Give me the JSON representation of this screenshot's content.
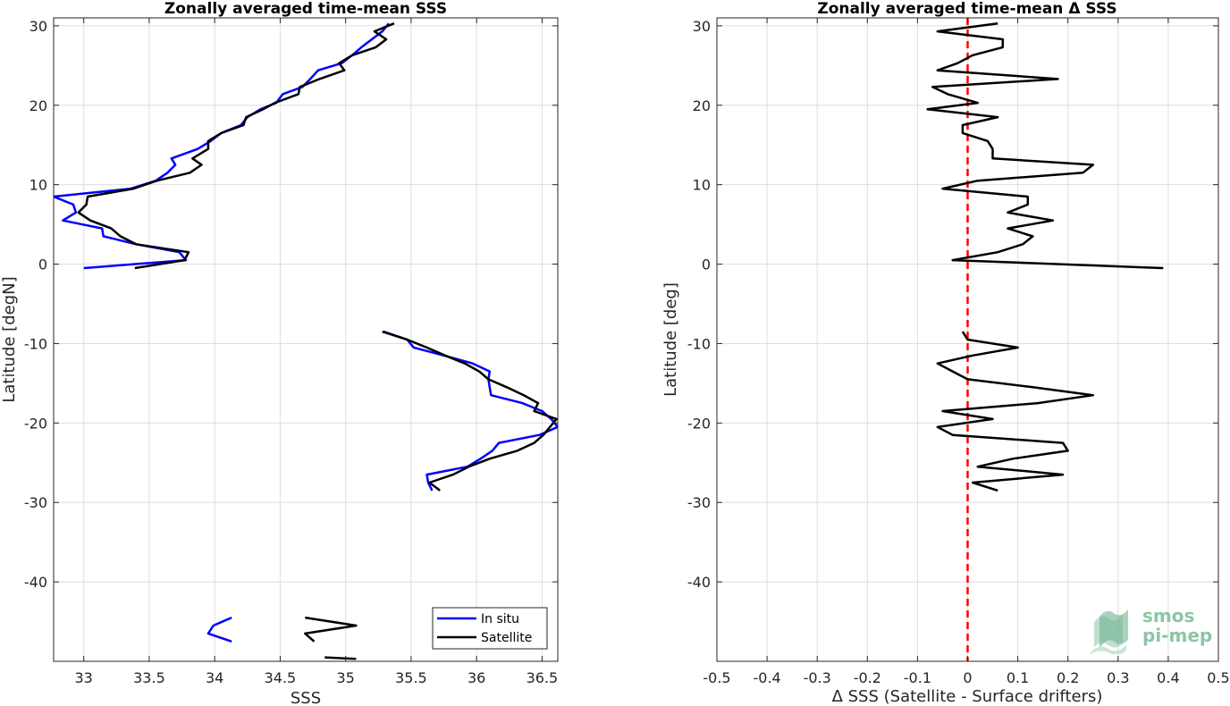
{
  "logo": {
    "line1": "smos",
    "line2": "pi-mep"
  },
  "chart_data": [
    {
      "type": "line",
      "title": "Zonally averaged time-mean SSS",
      "xlabel": "SSS",
      "ylabel": "Latitude [degN]",
      "xlim": [
        32.77,
        36.62
      ],
      "ylim": [
        -50,
        31
      ],
      "xticks": [
        33,
        33.5,
        34,
        34.5,
        35,
        35.5,
        36,
        36.5
      ],
      "xtick_labels": [
        "33",
        "33.5",
        "34",
        "34.5",
        "35",
        "35.5",
        "36",
        "36.5"
      ],
      "yticks": [
        -40,
        -30,
        -20,
        -10,
        0,
        10,
        20,
        30
      ],
      "ytick_labels": [
        "-40",
        "-30",
        "-20",
        "-10",
        "0",
        "10",
        "20",
        "30"
      ],
      "grid": true,
      "legend": {
        "position": "bottom-right",
        "entries": [
          "In situ",
          "Satellite"
        ]
      },
      "series": [
        {
          "name": "In situ",
          "color": "#0000ff",
          "segments": [
            [
              [
                35.33,
                30.3
              ],
              [
                35.28,
                29.3
              ],
              [
                35.2,
                28.3
              ],
              [
                35.12,
                27.3
              ],
              [
                35.05,
                26.3
              ],
              [
                34.97,
                25.3
              ],
              [
                34.79,
                24.4
              ],
              [
                34.73,
                23.3
              ],
              [
                34.67,
                22.3
              ],
              [
                34.52,
                21.4
              ],
              [
                34.47,
                20.3
              ],
              [
                34.35,
                19.5
              ],
              [
                34.25,
                18.5
              ],
              [
                34.2,
                17.5
              ],
              [
                34.05,
                16.5
              ],
              [
                33.97,
                15.5
              ],
              [
                33.87,
                14.5
              ],
              [
                33.67,
                13.3
              ],
              [
                33.7,
                12.5
              ],
              [
                33.64,
                11.5
              ],
              [
                33.55,
                10.5
              ],
              [
                33.36,
                9.5
              ],
              [
                32.77,
                8.5
              ],
              [
                32.92,
                7.5
              ],
              [
                32.94,
                6.5
              ],
              [
                32.84,
                5.5
              ],
              [
                33.14,
                4.5
              ],
              [
                33.15,
                3.5
              ],
              [
                33.4,
                2.5
              ],
              [
                33.73,
                1.5
              ],
              [
                33.78,
                0.5
              ],
              [
                33.0,
                -0.5
              ]
            ],
            [
              [
                35.29,
                -8.5
              ],
              [
                35.47,
                -9.5
              ],
              [
                35.52,
                -10.5
              ],
              [
                35.75,
                -11.5
              ],
              [
                35.97,
                -12.5
              ],
              [
                36.1,
                -13.5
              ],
              [
                36.09,
                -14.5
              ],
              [
                36.1,
                -15.5
              ],
              [
                36.11,
                -16.5
              ],
              [
                36.35,
                -17.5
              ],
              [
                36.5,
                -18.5
              ],
              [
                36.57,
                -19.5
              ],
              [
                36.62,
                -20.5
              ],
              [
                36.48,
                -21.5
              ],
              [
                36.17,
                -22.5
              ],
              [
                36.12,
                -23.5
              ],
              [
                36.03,
                -24.5
              ],
              [
                35.93,
                -25.5
              ],
              [
                35.62,
                -26.5
              ],
              [
                35.63,
                -27.5
              ],
              [
                35.66,
                -28.5
              ]
            ],
            [
              [
                34.13,
                -44.5
              ],
              [
                33.99,
                -45.5
              ],
              [
                33.95,
                -46.5
              ],
              [
                34.13,
                -47.5
              ]
            ]
          ]
        },
        {
          "name": "Satellite",
          "color": "#000000",
          "segments": [
            [
              [
                35.37,
                30.3
              ],
              [
                35.22,
                29.3
              ],
              [
                35.31,
                28.3
              ],
              [
                35.23,
                27.3
              ],
              [
                35.05,
                26.3
              ],
              [
                34.95,
                25.3
              ],
              [
                34.99,
                24.4
              ],
              [
                34.8,
                23.3
              ],
              [
                34.65,
                22.3
              ],
              [
                34.64,
                21.4
              ],
              [
                34.46,
                20.3
              ],
              [
                34.37,
                19.5
              ],
              [
                34.24,
                18.5
              ],
              [
                34.22,
                17.5
              ],
              [
                34.05,
                16.5
              ],
              [
                33.95,
                15.5
              ],
              [
                33.95,
                14.5
              ],
              [
                33.83,
                13.3
              ],
              [
                33.9,
                12.5
              ],
              [
                33.81,
                11.5
              ],
              [
                33.56,
                10.5
              ],
              [
                33.38,
                9.5
              ],
              [
                33.03,
                8.5
              ],
              [
                33.02,
                7.5
              ],
              [
                32.96,
                6.5
              ],
              [
                33.05,
                5.5
              ],
              [
                33.21,
                4.5
              ],
              [
                33.28,
                3.5
              ],
              [
                33.4,
                2.5
              ],
              [
                33.8,
                1.5
              ],
              [
                33.77,
                0.5
              ],
              [
                33.39,
                -0.5
              ]
            ],
            [
              [
                35.28,
                -8.5
              ],
              [
                35.47,
                -9.5
              ],
              [
                35.62,
                -10.5
              ],
              [
                35.76,
                -11.5
              ],
              [
                35.91,
                -12.5
              ],
              [
                36.02,
                -13.5
              ],
              [
                36.09,
                -14.5
              ],
              [
                36.23,
                -15.5
              ],
              [
                36.36,
                -16.5
              ],
              [
                36.47,
                -17.5
              ],
              [
                36.44,
                -18.5
              ],
              [
                36.61,
                -19.5
              ],
              [
                36.56,
                -20.5
              ],
              [
                36.51,
                -21.5
              ],
              [
                36.44,
                -22.5
              ],
              [
                36.31,
                -23.5
              ],
              [
                36.1,
                -24.5
              ],
              [
                35.94,
                -25.5
              ],
              [
                35.82,
                -26.5
              ],
              [
                35.64,
                -27.5
              ],
              [
                35.72,
                -28.5
              ]
            ],
            [
              [
                34.69,
                -44.5
              ],
              [
                35.08,
                -45.5
              ],
              [
                34.69,
                -46.5
              ],
              [
                34.76,
                -47.5
              ]
            ],
            [
              [
                34.84,
                -49.5
              ],
              [
                35.08,
                -49.7
              ]
            ]
          ]
        }
      ]
    },
    {
      "type": "line",
      "title": "Zonally averaged time-mean Δ SSS",
      "xlabel": "Δ SSS (Satellite - Surface drifters)",
      "ylabel": "Latitude [deg]",
      "xlim": [
        -0.5,
        0.5
      ],
      "ylim": [
        -50,
        31
      ],
      "xticks": [
        -0.5,
        -0.4,
        -0.3,
        -0.2,
        -0.1,
        0,
        0.1,
        0.2,
        0.3,
        0.4,
        0.5
      ],
      "xtick_labels": [
        "-0.5",
        "-0.4",
        "-0.3",
        "-0.2",
        "-0.1",
        "0",
        "0.1",
        "0.2",
        "0.3",
        "0.4",
        "0.5"
      ],
      "yticks": [
        -40,
        -30,
        -20,
        -10,
        0,
        10,
        20,
        30
      ],
      "ytick_labels": [
        "-40",
        "-30",
        "-20",
        "-10",
        "0",
        "10",
        "20",
        "30"
      ],
      "grid": true,
      "reference_line": {
        "x": 0,
        "color": "#ff0000",
        "style": "dashed"
      },
      "series": [
        {
          "color": "#000000",
          "segments": [
            [
              [
                0.06,
                30.3
              ],
              [
                -0.06,
                29.3
              ],
              [
                0.07,
                28.3
              ],
              [
                0.07,
                27.3
              ],
              [
                0.01,
                26.3
              ],
              [
                -0.02,
                25.3
              ],
              [
                -0.06,
                24.4
              ],
              [
                0.18,
                23.3
              ],
              [
                -0.07,
                22.3
              ],
              [
                -0.04,
                21.4
              ],
              [
                0.02,
                20.3
              ],
              [
                -0.08,
                19.5
              ],
              [
                0.06,
                18.5
              ],
              [
                -0.01,
                17.5
              ],
              [
                -0.01,
                16.5
              ],
              [
                0.04,
                15.5
              ],
              [
                0.05,
                14.5
              ],
              [
                0.05,
                13.3
              ],
              [
                0.25,
                12.5
              ],
              [
                0.23,
                11.5
              ],
              [
                0.02,
                10.5
              ],
              [
                -0.05,
                9.5
              ],
              [
                0.12,
                8.5
              ],
              [
                0.12,
                7.5
              ],
              [
                0.08,
                6.5
              ],
              [
                0.17,
                5.5
              ],
              [
                0.08,
                4.5
              ],
              [
                0.13,
                3.5
              ],
              [
                0.11,
                2.5
              ],
              [
                0.06,
                1.5
              ],
              [
                -0.03,
                0.5
              ],
              [
                0.39,
                -0.5
              ]
            ],
            [
              [
                -0.01,
                -8.5
              ],
              [
                0.0,
                -9.5
              ],
              [
                0.1,
                -10.5
              ],
              [
                0.01,
                -11.5
              ],
              [
                -0.06,
                -12.5
              ],
              [
                -0.03,
                -13.5
              ],
              [
                0.0,
                -14.5
              ],
              [
                0.13,
                -15.5
              ],
              [
                0.25,
                -16.5
              ],
              [
                0.14,
                -17.5
              ],
              [
                -0.05,
                -18.5
              ],
              [
                0.05,
                -19.5
              ],
              [
                -0.06,
                -20.5
              ],
              [
                -0.03,
                -21.5
              ],
              [
                0.19,
                -22.5
              ],
              [
                0.2,
                -23.5
              ],
              [
                0.09,
                -24.5
              ],
              [
                0.02,
                -25.5
              ],
              [
                0.19,
                -26.5
              ],
              [
                0.01,
                -27.5
              ],
              [
                0.06,
                -28.5
              ]
            ]
          ]
        }
      ]
    }
  ]
}
